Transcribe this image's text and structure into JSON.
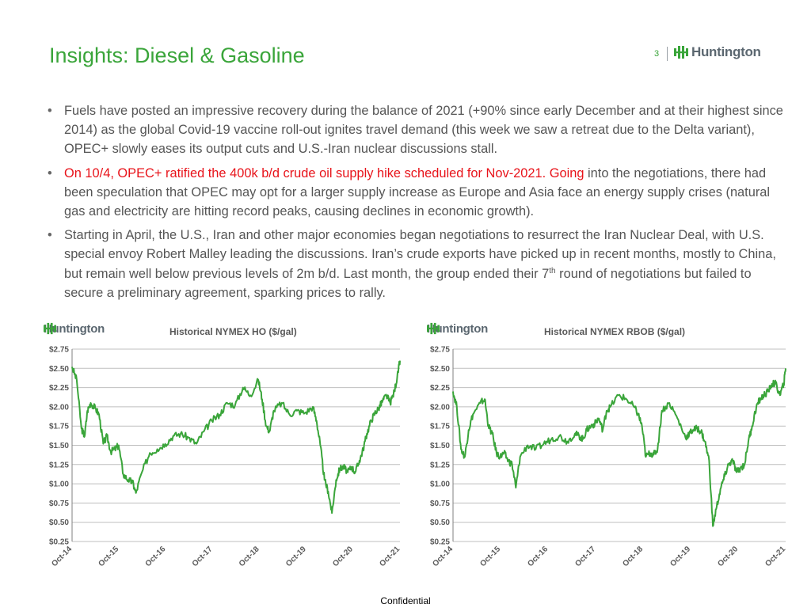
{
  "slide": {
    "title": "Insights: Diesel & Gasoline",
    "page_number": "3",
    "brand": "Huntington",
    "footer": "Confidential"
  },
  "bullets": [
    {
      "text": "Fuels have posted an impressive recovery during the balance of 2021 (+90% since early December and at their highest since 2014) as the global Covid-19 vaccine roll-out ignites travel demand (this week we saw a retreat due to the Delta variant), OPEC+ slowly eases its output cuts and U.S.-Iran nuclear discussions stall."
    },
    {
      "red_text": "On 10/4, OPEC+ ratified the 400k b/d crude oil supply hike scheduled for Nov-2021. Going",
      "text": " into the negotiations, there had been speculation that OPEC may opt for a larger supply increase as Europe and Asia face an energy supply crises (natural gas and electricity are hitting record peaks, causing declines in economic growth)."
    },
    {
      "text": "Starting in April, the U.S., Iran and other major economies began negotiations to resurrect the Iran Nuclear Deal, with U.S. special envoy Robert Malley leading the discussions. Iran’s crude exports have picked up in recent months, mostly to China, but remain well below previous levels of 2m b/d. Last month, the group ended their 7",
      "sup": "th",
      "text_after": " round of negotiations but failed to secure a preliminary agreement, sparking prices to rally."
    }
  ],
  "colors": {
    "brand_green": "#3aa53a",
    "series_green": "#3aa53a",
    "highlight_red": "#e8131a",
    "text_gray": "#555555",
    "grid_gray": "#bfbfbf"
  },
  "chart_data": [
    {
      "type": "line",
      "title": "Historical NYMEX HO ($/gal)",
      "brand": "Huntington",
      "x_ticks": [
        "Oct-14",
        "Oct-15",
        "Oct-16",
        "Oct-17",
        "Oct-18",
        "Oct-19",
        "Oct-20",
        "Oct-21"
      ],
      "y_ticks": [
        "$2.75",
        "$2.50",
        "$2.25",
        "$2.00",
        "$1.75",
        "$1.50",
        "$1.25",
        "$1.00",
        "$0.75",
        "$0.50",
        "$0.25"
      ],
      "ylim": [
        0.25,
        2.75
      ],
      "xlim": [
        2014.75,
        2021.79
      ],
      "grid": true,
      "legend": "none",
      "series": [
        {
          "x": [
            2014.75,
            2014.85,
            2014.95,
            2015.02,
            2015.08,
            2015.15,
            2015.25,
            2015.33,
            2015.42,
            2015.5,
            2015.58,
            2015.67,
            2015.75,
            2015.85,
            2015.96,
            2016.05,
            2016.12,
            2016.25,
            2016.42,
            2016.58,
            2016.75,
            2016.92,
            2017.08,
            2017.25,
            2017.42,
            2017.58,
            2017.75,
            2017.92,
            2018.08,
            2018.25,
            2018.42,
            2018.58,
            2018.75,
            2018.83,
            2018.92,
            2018.99,
            2019.08,
            2019.25,
            2019.42,
            2019.58,
            2019.75,
            2019.92,
            2020.0,
            2020.08,
            2020.17,
            2020.25,
            2020.33,
            2020.42,
            2020.5,
            2020.58,
            2020.67,
            2020.75,
            2020.83,
            2020.92,
            2021.0,
            2021.08,
            2021.17,
            2021.25,
            2021.33,
            2021.42,
            2021.5,
            2021.58,
            2021.67,
            2021.75,
            2021.79
          ],
          "y": [
            2.52,
            2.35,
            1.72,
            1.62,
            1.95,
            2.05,
            1.98,
            1.9,
            1.52,
            1.62,
            1.42,
            1.45,
            1.5,
            1.12,
            1.05,
            1.02,
            0.88,
            1.15,
            1.4,
            1.45,
            1.52,
            1.62,
            1.65,
            1.6,
            1.52,
            1.68,
            1.82,
            1.9,
            2.05,
            2.02,
            2.25,
            2.15,
            2.35,
            2.1,
            1.75,
            1.68,
            1.95,
            2.05,
            1.9,
            1.95,
            1.92,
            2.0,
            1.82,
            1.5,
            1.05,
            0.9,
            0.62,
            1.05,
            1.2,
            1.22,
            1.15,
            1.22,
            1.15,
            1.3,
            1.45,
            1.65,
            1.82,
            1.92,
            1.98,
            2.08,
            2.15,
            2.05,
            2.2,
            2.45,
            2.6
          ]
        }
      ]
    },
    {
      "type": "line",
      "title": "Historical NYMEX RBOB ($/gal)",
      "brand": "Huntington",
      "x_ticks": [
        "Oct-14",
        "Oct-15",
        "Oct-16",
        "Oct-17",
        "Oct-18",
        "Oct-19",
        "Oct-20",
        "Oct-21"
      ],
      "y_ticks": [
        "$2.75",
        "$2.50",
        "$2.25",
        "$2.00",
        "$1.75",
        "$1.50",
        "$1.25",
        "$1.00",
        "$0.75",
        "$0.50",
        "$0.25"
      ],
      "ylim": [
        0.25,
        2.75
      ],
      "xlim": [
        2014.75,
        2021.79
      ],
      "grid": true,
      "legend": "none",
      "series": [
        {
          "x": [
            2014.75,
            2014.83,
            2014.92,
            2015.0,
            2015.08,
            2015.17,
            2015.33,
            2015.42,
            2015.5,
            2015.58,
            2015.67,
            2015.75,
            2015.83,
            2015.92,
            2016.0,
            2016.08,
            2016.17,
            2016.33,
            2016.5,
            2016.67,
            2016.83,
            2017.0,
            2017.17,
            2017.33,
            2017.42,
            2017.5,
            2017.58,
            2017.67,
            2017.75,
            2017.83,
            2017.92,
            2018.0,
            2018.08,
            2018.25,
            2018.42,
            2018.58,
            2018.67,
            2018.75,
            2018.83,
            2018.92,
            2019.0,
            2019.08,
            2019.17,
            2019.33,
            2019.5,
            2019.67,
            2019.75,
            2019.83,
            2019.92,
            2020.0,
            2020.08,
            2020.17,
            2020.25,
            2020.33,
            2020.42,
            2020.5,
            2020.58,
            2020.67,
            2020.75,
            2020.83,
            2020.92,
            2021.0,
            2021.08,
            2021.17,
            2021.25,
            2021.33,
            2021.42,
            2021.5,
            2021.58,
            2021.67,
            2021.75,
            2021.79
          ],
          "y": [
            2.2,
            2.0,
            1.45,
            1.35,
            1.7,
            1.9,
            2.05,
            2.1,
            1.75,
            1.65,
            1.4,
            1.35,
            1.4,
            1.3,
            1.25,
            0.95,
            1.35,
            1.5,
            1.45,
            1.52,
            1.58,
            1.62,
            1.55,
            1.65,
            1.62,
            1.58,
            1.7,
            1.75,
            1.78,
            1.85,
            1.7,
            1.95,
            2.0,
            2.15,
            2.1,
            2.0,
            1.9,
            1.75,
            1.35,
            1.4,
            1.38,
            1.45,
            1.95,
            2.05,
            1.85,
            1.6,
            1.65,
            1.7,
            1.72,
            1.68,
            1.55,
            1.3,
            0.45,
            0.7,
            0.95,
            1.1,
            1.25,
            1.3,
            1.15,
            1.2,
            1.25,
            1.55,
            1.75,
            2.0,
            2.1,
            2.15,
            2.2,
            2.3,
            2.3,
            2.15,
            2.3,
            2.5
          ]
        }
      ]
    }
  ]
}
